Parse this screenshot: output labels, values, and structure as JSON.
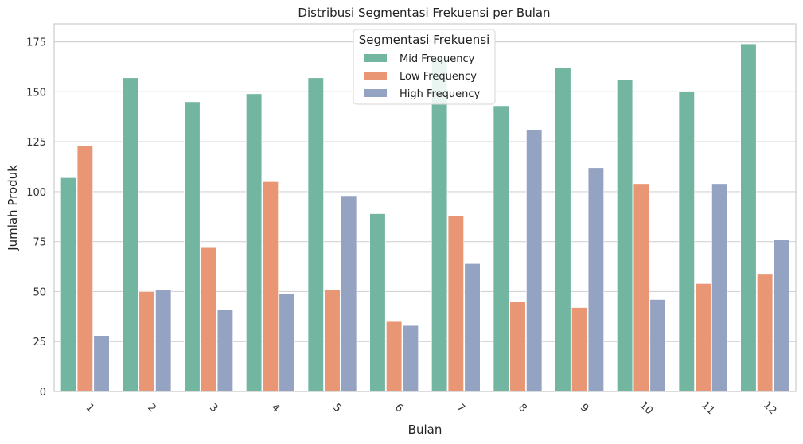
{
  "chart_data": {
    "type": "bar",
    "title": "Distribusi Segmentasi Frekuensi per Bulan",
    "xlabel": "Bulan",
    "ylabel": "Jumlah Produk",
    "categories": [
      "1",
      "2",
      "3",
      "4",
      "5",
      "6",
      "7",
      "8",
      "9",
      "10",
      "11",
      "12"
    ],
    "ylim": [
      0,
      184
    ],
    "yticks": [
      "0",
      "25",
      "50",
      "75",
      "100",
      "125",
      "150",
      "175"
    ],
    "grid": "horizontal",
    "legend": {
      "title": "Segmentasi Frekuensi",
      "placement": "top-center"
    },
    "series": [
      {
        "name": "Mid Frequency",
        "color": "#72b6a1",
        "values": [
          107,
          157,
          145,
          149,
          157,
          89,
          167,
          143,
          162,
          156,
          150,
          174
        ]
      },
      {
        "name": "Low Frequency",
        "color": "#e99675",
        "values": [
          123,
          50,
          72,
          105,
          51,
          35,
          88,
          45,
          42,
          104,
          54,
          59
        ]
      },
      {
        "name": "High Frequency",
        "color": "#95a3c3",
        "values": [
          28,
          51,
          41,
          49,
          98,
          33,
          64,
          131,
          112,
          46,
          104,
          76
        ]
      }
    ]
  }
}
